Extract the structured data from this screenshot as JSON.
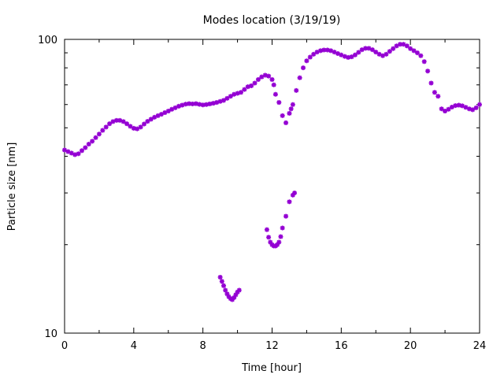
{
  "chart_data": {
    "type": "scatter",
    "title": "Modes location (3/19/19)",
    "xlabel": "Time [hour]",
    "ylabel": "Particle size [nm]",
    "xlim": [
      0,
      24
    ],
    "ylim": [
      10,
      100
    ],
    "yscale": "log",
    "xticks": [
      "0",
      "4",
      "8",
      "12",
      "16",
      "20",
      "24"
    ],
    "yticks": [
      "10",
      "100"
    ],
    "grid": false,
    "marker_color": "#9400d3",
    "series": [
      {
        "values_xy": [
          [
            0.0,
            42
          ],
          [
            0.2,
            41.5
          ],
          [
            0.4,
            41
          ],
          [
            0.6,
            40.5
          ],
          [
            0.8,
            40.8
          ],
          [
            1.0,
            41.8
          ],
          [
            1.2,
            42.8
          ],
          [
            1.4,
            44
          ],
          [
            1.6,
            45
          ],
          [
            1.8,
            46.3
          ],
          [
            2.0,
            47.6
          ],
          [
            2.2,
            49
          ],
          [
            2.4,
            50.3
          ],
          [
            2.6,
            51.6
          ],
          [
            2.8,
            52.5
          ],
          [
            3.0,
            53
          ],
          [
            3.2,
            53
          ],
          [
            3.4,
            52.5
          ],
          [
            3.6,
            51.6
          ],
          [
            3.8,
            50.6
          ],
          [
            4.0,
            49.8
          ],
          [
            4.2,
            49.6
          ],
          [
            4.4,
            50.3
          ],
          [
            4.6,
            51.5
          ],
          [
            4.8,
            52.6
          ],
          [
            5.0,
            53.5
          ],
          [
            5.2,
            54.3
          ],
          [
            5.4,
            55
          ],
          [
            5.6,
            55.6
          ],
          [
            5.8,
            56.3
          ],
          [
            6.0,
            57
          ],
          [
            6.2,
            57.8
          ],
          [
            6.4,
            58.5
          ],
          [
            6.6,
            59.2
          ],
          [
            6.8,
            59.7
          ],
          [
            7.0,
            60.2
          ],
          [
            7.2,
            60.4
          ],
          [
            7.4,
            60.3
          ],
          [
            7.6,
            60.4
          ],
          [
            7.8,
            60.1
          ],
          [
            8.0,
            59.8
          ],
          [
            8.2,
            60
          ],
          [
            8.4,
            60.3
          ],
          [
            8.6,
            60.6
          ],
          [
            8.8,
            61
          ],
          [
            9.0,
            61.5
          ],
          [
            9.2,
            62
          ],
          [
            9.4,
            63
          ],
          [
            9.6,
            64
          ],
          [
            9.8,
            65
          ],
          [
            10.0,
            65.5
          ],
          [
            10.2,
            66
          ],
          [
            10.4,
            67.5
          ],
          [
            10.6,
            69
          ],
          [
            10.8,
            69.5
          ],
          [
            11.0,
            71
          ],
          [
            11.2,
            73
          ],
          [
            11.4,
            74.5
          ],
          [
            11.6,
            75.5
          ],
          [
            11.8,
            75
          ],
          [
            12.0,
            73
          ],
          [
            12.1,
            70
          ],
          [
            12.2,
            65
          ],
          [
            12.4,
            61
          ],
          [
            12.6,
            55
          ],
          [
            12.8,
            52
          ],
          [
            13.0,
            56
          ],
          [
            13.1,
            58
          ],
          [
            13.2,
            60
          ],
          [
            13.4,
            67
          ],
          [
            13.6,
            74
          ],
          [
            13.8,
            80
          ],
          [
            14.0,
            84.5
          ],
          [
            14.2,
            87
          ],
          [
            14.4,
            89
          ],
          [
            14.6,
            90.5
          ],
          [
            14.8,
            91.5
          ],
          [
            15.0,
            92
          ],
          [
            15.2,
            92
          ],
          [
            15.4,
            91.5
          ],
          [
            15.6,
            90.5
          ],
          [
            15.8,
            89.5
          ],
          [
            16.0,
            88.5
          ],
          [
            16.2,
            87.5
          ],
          [
            16.4,
            86.8
          ],
          [
            16.6,
            87.2
          ],
          [
            16.8,
            88.5
          ],
          [
            17.0,
            90.3
          ],
          [
            17.2,
            92.2
          ],
          [
            17.4,
            93.2
          ],
          [
            17.6,
            93.2
          ],
          [
            17.8,
            92.2
          ],
          [
            18.0,
            90.5
          ],
          [
            18.2,
            89
          ],
          [
            18.4,
            88
          ],
          [
            18.6,
            89
          ],
          [
            18.8,
            91
          ],
          [
            19.0,
            93
          ],
          [
            19.2,
            95
          ],
          [
            19.4,
            96.2
          ],
          [
            19.6,
            96.2
          ],
          [
            19.8,
            95
          ],
          [
            20.0,
            93
          ],
          [
            20.2,
            91.5
          ],
          [
            20.4,
            90
          ],
          [
            20.6,
            88
          ],
          [
            20.8,
            84
          ],
          [
            21.0,
            78
          ],
          [
            21.2,
            71
          ],
          [
            21.4,
            66
          ],
          [
            21.6,
            64
          ],
          [
            21.8,
            58
          ],
          [
            22.0,
            57
          ],
          [
            22.2,
            57.8
          ],
          [
            22.4,
            58.8
          ],
          [
            22.6,
            59.5
          ],
          [
            22.8,
            59.7
          ],
          [
            23.0,
            59.4
          ],
          [
            23.2,
            58.7
          ],
          [
            23.4,
            58
          ],
          [
            23.6,
            57.6
          ],
          [
            23.8,
            58.5
          ],
          [
            24.0,
            60
          ]
        ]
      },
      {
        "values_xy": [
          [
            9.0,
            15.5
          ],
          [
            9.1,
            15.0
          ],
          [
            9.2,
            14.5
          ],
          [
            9.3,
            14.0
          ],
          [
            9.4,
            13.6
          ],
          [
            9.5,
            13.3
          ],
          [
            9.6,
            13.1
          ],
          [
            9.7,
            13.0
          ],
          [
            9.8,
            13.2
          ],
          [
            9.9,
            13.5
          ],
          [
            10.0,
            13.8
          ],
          [
            10.1,
            14.0
          ],
          [
            11.7,
            22.5
          ],
          [
            11.8,
            21.2
          ],
          [
            11.9,
            20.4
          ],
          [
            12.0,
            20.0
          ],
          [
            12.1,
            19.8
          ],
          [
            12.2,
            19.8
          ],
          [
            12.3,
            20.0
          ],
          [
            12.4,
            20.4
          ],
          [
            12.5,
            21.3
          ],
          [
            12.6,
            22.8
          ],
          [
            12.8,
            25
          ],
          [
            13.0,
            28
          ],
          [
            13.2,
            29.5
          ],
          [
            13.3,
            30
          ]
        ]
      }
    ]
  }
}
